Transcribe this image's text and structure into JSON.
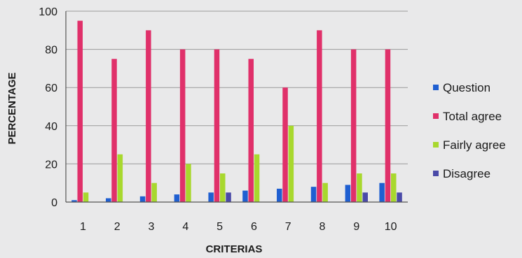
{
  "chart_data": {
    "type": "bar",
    "categories": [
      "1",
      "2",
      "3",
      "4",
      "5",
      "6",
      "7",
      "8",
      "9",
      "10"
    ],
    "series": [
      {
        "name": "Question",
        "color": "#1f5fd1",
        "values": [
          1,
          2,
          3,
          4,
          5,
          6,
          7,
          8,
          9,
          10
        ]
      },
      {
        "name": "Total agree",
        "color": "#e0306a",
        "values": [
          95,
          75,
          90,
          80,
          80,
          75,
          60,
          90,
          80,
          80
        ]
      },
      {
        "name": "Fairly agree",
        "color": "#a8d82e",
        "values": [
          5,
          25,
          10,
          20,
          15,
          25,
          40,
          10,
          15,
          15
        ]
      },
      {
        "name": "Disagree",
        "color": "#4a4aa8",
        "values": [
          0,
          0,
          0,
          0,
          5,
          0,
          0,
          0,
          5,
          5
        ]
      }
    ],
    "xlabel": "CRITERIAS",
    "ylabel": "PERCENTAGE",
    "ylim": [
      0,
      100
    ],
    "yticks": [
      "0",
      "20",
      "40",
      "60",
      "80",
      "100"
    ],
    "grid": true,
    "legend_position": "right"
  }
}
